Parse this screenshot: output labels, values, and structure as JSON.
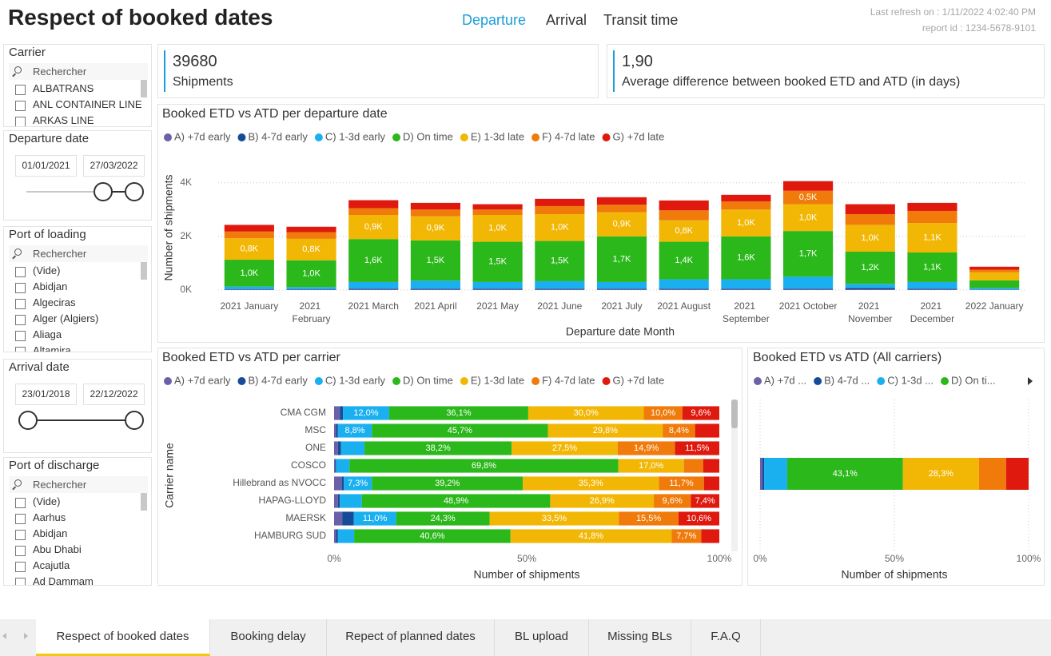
{
  "header": {
    "title": "Respect of booked dates",
    "nav": [
      {
        "label": "Departure",
        "active": true
      },
      {
        "label": "Arrival"
      },
      {
        "label": "Transit time"
      }
    ],
    "refresh": "Last refresh on : 1/11/2022 4:02:40 PM",
    "report_id": "report id : 1234-5678-9101"
  },
  "filters": [
    {
      "title": "Carrier",
      "search": "Rechercher",
      "items": [
        "ALBATRANS",
        "ANL CONTAINER LINE",
        "ARKAS LINE"
      ]
    },
    {
      "title": "Departure date",
      "from": "01/01/2021",
      "to": "27/03/2022"
    },
    {
      "title": "Port of loading",
      "search": "Rechercher",
      "items": [
        "(Vide)",
        "Abidjan",
        "Algeciras",
        "Alger (Algiers)",
        "Aliaga",
        "Altamira"
      ]
    },
    {
      "title": "Arrival date",
      "from": "23/01/2018",
      "to": "22/12/2022"
    },
    {
      "title": "Port of discharge",
      "search": "Rechercher",
      "items": [
        "(Vide)",
        "Aarhus",
        "Abidjan",
        "Abu Dhabi",
        "Acajutla",
        "Ad Dammam"
      ]
    }
  ],
  "kpis": [
    {
      "value": 39680,
      "label": "Shipments"
    },
    {
      "value": "1,90",
      "label": "Average difference between booked ETD and ATD (in days)"
    }
  ],
  "chart_data": [
    {
      "type": "stacked_bar",
      "title": "Booked ETD vs ATD per departure date",
      "x_label": "Departure date Month",
      "y_label": "Number of shipments",
      "categories": [
        "2021 January",
        "2021 February",
        "2021 March",
        "2021 April",
        "2021 May",
        "2021 June",
        "2021 July",
        "2021 August",
        "2021 September",
        "2021 October",
        "2021 November",
        "2021 December",
        "2022 January"
      ],
      "ylim": [
        0,
        4200
      ],
      "yticks": [
        {
          "value": 0,
          "label": "0K"
        },
        {
          "value": 2000,
          "label": "2K"
        },
        {
          "value": 4000,
          "label": "4K"
        }
      ],
      "grid": true,
      "series": [
        {
          "name": "A) +7d early",
          "color": "#6a62a8",
          "values": [
            20,
            20,
            30,
            30,
            30,
            30,
            30,
            30,
            30,
            30,
            30,
            30,
            10
          ]
        },
        {
          "name": "B) 4-7d early",
          "color": "#174b97",
          "values": [
            10,
            10,
            20,
            20,
            20,
            20,
            20,
            20,
            20,
            20,
            50,
            20,
            10
          ]
        },
        {
          "name": "C) 1-3d early",
          "color": "#1ab0f0",
          "values": [
            100,
            80,
            250,
            300,
            250,
            280,
            250,
            350,
            350,
            450,
            150,
            250,
            60
          ]
        },
        {
          "name": "D) On time",
          "color": "#2bb81b",
          "values": [
            1000,
            1000,
            1600,
            1500,
            1500,
            1500,
            1700,
            1400,
            1600,
            1700,
            1200,
            1100,
            280
          ],
          "value_labels": [
            "1,0K",
            "1,0K",
            "1,6K",
            "1,5K",
            "1,5K",
            "1,5K",
            "1,7K",
            "1,4K",
            "1,6K",
            "1,7K",
            "1,2K",
            "1,1K",
            null
          ]
        },
        {
          "name": "E) 1-3d late",
          "color": "#f2b705",
          "values": [
            800,
            800,
            900,
            900,
            1000,
            1000,
            900,
            800,
            1000,
            1000,
            1000,
            1100,
            300
          ],
          "value_labels": [
            "0,8K",
            "0,8K",
            "0,9K",
            "0,9K",
            "1,0K",
            "1,0K",
            "0,9K",
            "0,8K",
            "1,0K",
            "1,0K",
            "1,0K",
            "1,1K",
            null
          ]
        },
        {
          "name": "F) 4-7d late",
          "color": "#f07b0b",
          "values": [
            250,
            250,
            250,
            250,
            200,
            300,
            280,
            370,
            300,
            500,
            400,
            450,
            100
          ],
          "value_labels": [
            null,
            null,
            null,
            null,
            null,
            null,
            null,
            null,
            null,
            "0,5K",
            null,
            null,
            null
          ]
        },
        {
          "name": "G) +7d late",
          "color": "#e0190f",
          "values": [
            250,
            200,
            300,
            250,
            200,
            270,
            280,
            370,
            250,
            360,
            370,
            300,
            110
          ]
        }
      ]
    },
    {
      "type": "stacked_barh",
      "title": "Booked ETD vs ATD per carrier",
      "x_label": "Number of shipments",
      "y_label": "Carrier name",
      "categories": [
        "CMA CGM",
        "MSC",
        "ONE",
        "COSCO",
        "Hillebrand as NVOCC",
        "HAPAG-LLOYD",
        "MAERSK",
        "HAMBURG SUD"
      ],
      "xlim": [
        0,
        100
      ],
      "xticks": [
        {
          "value": 0,
          "label": "0%"
        },
        {
          "value": 50,
          "label": "50%"
        },
        {
          "value": 100,
          "label": "100%"
        }
      ],
      "grid": false,
      "series": [
        {
          "name": "A) +7d early",
          "color": "#6a62a8",
          "values": [
            1.5,
            0.5,
            1.0,
            0.3,
            2.0,
            1.0,
            2.1,
            0.5
          ]
        },
        {
          "name": "B) 4-7d early",
          "color": "#174b97",
          "values": [
            0.8,
            0.5,
            0.8,
            0.2,
            0.5,
            0.5,
            3.0,
            0.5
          ]
        },
        {
          "name": "C) 1-3d early",
          "color": "#1ab0f0",
          "values": [
            12.0,
            8.8,
            6.1,
            3.5,
            7.3,
            5.7,
            11.0,
            4.2
          ],
          "value_labels": [
            "12,0%",
            "8,8%",
            null,
            null,
            "7,3%",
            null,
            "11,0%",
            null
          ]
        },
        {
          "name": "D) On time",
          "color": "#2bb81b",
          "values": [
            36.1,
            45.7,
            38.2,
            69.8,
            39.2,
            48.9,
            24.3,
            40.6
          ],
          "value_labels": [
            "36,1%",
            "45,7%",
            "38,2%",
            "69,8%",
            "39,2%",
            "48,9%",
            "24,3%",
            "40,6%"
          ]
        },
        {
          "name": "E) 1-3d late",
          "color": "#f2b705",
          "values": [
            30.0,
            29.8,
            27.5,
            17.0,
            35.3,
            26.9,
            33.5,
            41.8
          ],
          "value_labels": [
            "30,0%",
            "29,8%",
            "27,5%",
            "17,0%",
            "35,3%",
            "26,9%",
            "33,5%",
            "41,8%"
          ]
        },
        {
          "name": "F) 4-7d late",
          "color": "#f07b0b",
          "values": [
            10.0,
            8.4,
            14.9,
            5.0,
            11.7,
            9.6,
            15.5,
            7.7
          ],
          "value_labels": [
            "10,0%",
            "8,4%",
            "14,9%",
            null,
            "11,7%",
            "9,6%",
            "15,5%",
            "7,7%"
          ]
        },
        {
          "name": "G) +7d late",
          "color": "#e0190f",
          "values": [
            9.6,
            6.3,
            11.5,
            4.2,
            4.0,
            7.4,
            10.6,
            4.7
          ],
          "value_labels": [
            "9,6%",
            null,
            "11,5%",
            null,
            null,
            "7,4%",
            "10,6%",
            null
          ]
        }
      ]
    },
    {
      "type": "stacked_barh",
      "title": "Booked ETD vs ATD (All carriers)",
      "x_label": "Number of shipments",
      "categories": [
        null
      ],
      "xlim": [
        0,
        100
      ],
      "xticks": [
        {
          "value": 0,
          "label": "0%"
        },
        {
          "value": 50,
          "label": "50%"
        },
        {
          "value": 100,
          "label": "100%"
        }
      ],
      "grid": true,
      "series": [
        {
          "name": "A) +7d ...",
          "color": "#6a62a8",
          "values": [
            0.9
          ]
        },
        {
          "name": "B) 4-7d ...",
          "color": "#174b97",
          "values": [
            0.6
          ]
        },
        {
          "name": "C) 1-3d ...",
          "color": "#1ab0f0",
          "values": [
            8.6
          ]
        },
        {
          "name": "D) On ti...",
          "color": "#2bb81b",
          "values": [
            43.1
          ],
          "value_labels": [
            "43,1%"
          ]
        },
        {
          "color": "#f2b705",
          "values": [
            28.3
          ],
          "value_labels": [
            "28,3%"
          ]
        },
        {
          "color": "#f07b0b",
          "values": [
            10.1
          ]
        },
        {
          "color": "#e0190f",
          "values": [
            8.4
          ]
        }
      ]
    }
  ],
  "tabs": [
    {
      "label": "Respect of booked dates",
      "active": true
    },
    {
      "label": "Booking delay"
    },
    {
      "label": "Repect of planned dates"
    },
    {
      "label": "BL upload"
    },
    {
      "label": "Missing BLs"
    },
    {
      "label": "F.A.Q"
    }
  ]
}
